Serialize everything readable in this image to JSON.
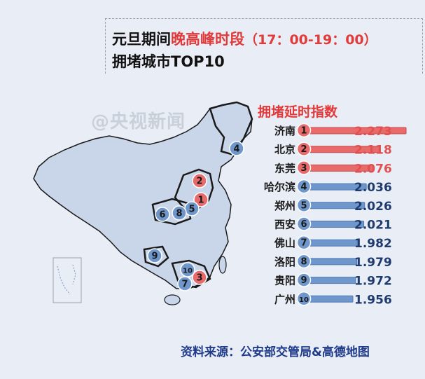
{
  "header": {
    "title_prefix": "元旦期间",
    "title_highlight": "晚高峰时段",
    "title_time": "（17：00-19：00）",
    "subtitle": "拥堵城市TOP10"
  },
  "watermark": "@央视新闻",
  "source": "资料来源：公安部交管局&高德地图",
  "colors": {
    "top3": "#e86a6a",
    "rest": "#6f97cc",
    "map_fill": "#c9d6ea",
    "map_stroke": "#1a1a1a",
    "value_top3": "#e05050",
    "value_rest": "#1f3b6e"
  },
  "chart_data": {
    "type": "bar",
    "title": "拥堵延时指数",
    "orientation": "horizontal",
    "ranks": [
      "1",
      "2",
      "3",
      "4",
      "5",
      "6",
      "7",
      "8",
      "9",
      "10"
    ],
    "categories": [
      "济南",
      "北京",
      "东莞",
      "哈尔滨",
      "郑州",
      "西安",
      "佛山",
      "洛阳",
      "贵阳",
      "广州"
    ],
    "values": [
      2.273,
      2.118,
      2.076,
      2.036,
      2.026,
      2.021,
      1.982,
      1.979,
      1.972,
      1.956
    ],
    "value_labels": [
      "2.273",
      "2.118",
      "2.076",
      "2.036",
      "2.026",
      "2.021",
      "1.982",
      "1.979",
      "1.972",
      "1.956"
    ],
    "highlight_top": 3
  },
  "map_markers": [
    {
      "rank": "1",
      "city": "济南"
    },
    {
      "rank": "2",
      "city": "北京"
    },
    {
      "rank": "3",
      "city": "东莞"
    },
    {
      "rank": "4",
      "city": "哈尔滨"
    },
    {
      "rank": "5",
      "city": "郑州"
    },
    {
      "rank": "6",
      "city": "西安"
    },
    {
      "rank": "7",
      "city": "佛山"
    },
    {
      "rank": "8",
      "city": "洛阳"
    },
    {
      "rank": "9",
      "city": "贵阳"
    },
    {
      "rank": "10",
      "city": "广州"
    }
  ]
}
